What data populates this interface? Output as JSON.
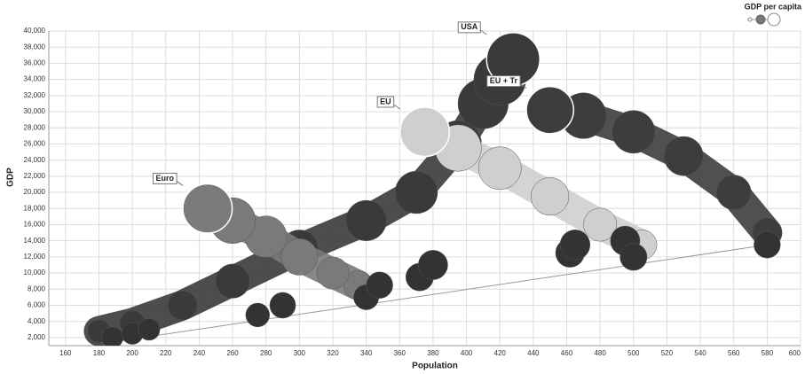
{
  "chart_data": {
    "type": "bubble",
    "x_label": "Population",
    "y_label": "GDP",
    "size_legend": "GDP per capita",
    "xlim": [
      150,
      600
    ],
    "ylim": [
      1000,
      40000
    ],
    "xticks": [
      160,
      180,
      200,
      220,
      240,
      260,
      280,
      300,
      320,
      340,
      360,
      380,
      400,
      420,
      440,
      460,
      480,
      500,
      520,
      540,
      560,
      580,
      600
    ],
    "yticks": [
      {
        "value": 2000,
        "label": "2,000"
      },
      {
        "value": 4000,
        "label": "4,000"
      },
      {
        "value": 6000,
        "label": "6,000"
      },
      {
        "value": 8000,
        "label": "8,000"
      },
      {
        "value": 10000,
        "label": "10,000"
      },
      {
        "value": 12000,
        "label": "12,000"
      },
      {
        "value": 14000,
        "label": "14,000"
      },
      {
        "value": 16000,
        "label": "16,000"
      },
      {
        "value": 18000,
        "label": "18,000"
      },
      {
        "value": 20000,
        "label": "20,000"
      },
      {
        "value": 22000,
        "label": "22,000"
      },
      {
        "value": 24000,
        "label": "24,000"
      },
      {
        "value": 26000,
        "label": "26,000"
      },
      {
        "value": 28000,
        "label": "28,000"
      },
      {
        "value": 30000,
        "label": "30,000"
      },
      {
        "value": 32000,
        "label": "32,000"
      },
      {
        "value": 34000,
        "label": "34,000"
      },
      {
        "value": 36000,
        "label": "36,000"
      },
      {
        "value": 38000,
        "label": "38,000"
      },
      {
        "value": 40000,
        "label": "40,000"
      }
    ],
    "grid": true,
    "series": [
      {
        "name": "USA",
        "color": "#3a3a3a",
        "x": [
          180,
          200,
          230,
          260,
          300,
          340,
          370,
          395,
          410,
          420,
          428
        ],
        "y": [
          2800,
          3800,
          6000,
          9000,
          13000,
          16500,
          20000,
          26000,
          31000,
          34000,
          36500
        ],
        "sizes": [
          16,
          19,
          26,
          35,
          43,
          49,
          54,
          66,
          76,
          81,
          85
        ]
      },
      {
        "name": "EU",
        "color": "#cfcfcf",
        "x": [
          505,
          480,
          450,
          420,
          395,
          375
        ],
        "y": [
          13500,
          16000,
          19500,
          23000,
          25500,
          27500
        ],
        "sizes": [
          27,
          33,
          43,
          55,
          65,
          73
        ]
      },
      {
        "name": "EU + Tr",
        "color": "#3d3d3d",
        "x": [
          580,
          560,
          530,
          500,
          470,
          450
        ],
        "y": [
          15000,
          20000,
          24500,
          27500,
          29500,
          30200
        ],
        "sizes": [
          26,
          36,
          46,
          55,
          63,
          67
        ]
      },
      {
        "name": "Euro",
        "color": "#7a7a7a",
        "x": [
          335,
          320,
          300,
          280,
          260,
          245
        ],
        "y": [
          8500,
          10000,
          12000,
          14500,
          16500,
          18000
        ],
        "sizes": [
          25,
          31,
          40,
          52,
          63,
          73
        ]
      },
      {
        "color": "#333333",
        "x": [
          188,
          200,
          210,
          275,
          290,
          340,
          348,
          372,
          380,
          462,
          465,
          495,
          500,
          580
        ],
        "y": [
          2000,
          2500,
          3000,
          4800,
          6000,
          7000,
          8500,
          9500,
          11000,
          12500,
          13500,
          14000,
          12000,
          13500
        ],
        "sizes": [
          14,
          14,
          14,
          17,
          20,
          19,
          21,
          23,
          26,
          25,
          27,
          26,
          22,
          21
        ]
      }
    ]
  }
}
